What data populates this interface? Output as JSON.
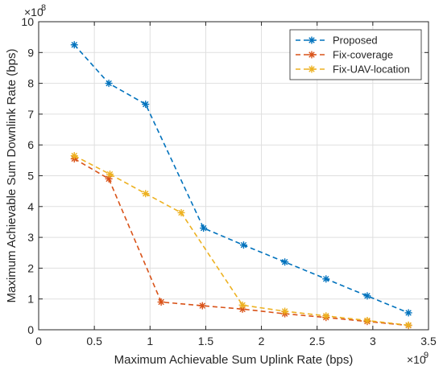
{
  "chart_data": {
    "type": "line",
    "xlabel": "Maximum Achievable Sum Uplink Rate (bps)",
    "ylabel": "Maximum  Achievable Sum Downlink Rate (bps)",
    "x_multiplier": "×10",
    "x_exponent": "9",
    "y_multiplier": "×10",
    "y_exponent": "8",
    "xlim": [
      0,
      3.5
    ],
    "ylim": [
      0,
      10
    ],
    "x_ticks": [
      "0",
      "0.5",
      "1",
      "1.5",
      "2",
      "2.5",
      "3",
      "3.5"
    ],
    "y_ticks": [
      "0",
      "1",
      "2",
      "3",
      "4",
      "5",
      "6",
      "7",
      "8",
      "9",
      "10"
    ],
    "grid": true,
    "legend_position": "top-right",
    "series": [
      {
        "name": "Proposed",
        "color": "#0072BD",
        "x": [
          0.32,
          0.63,
          0.96,
          1.48,
          1.84,
          2.21,
          2.58,
          2.95,
          3.32
        ],
        "y": [
          9.25,
          8.0,
          7.32,
          3.3,
          2.75,
          2.2,
          1.65,
          1.1,
          0.55
        ]
      },
      {
        "name": "Fix-coverage",
        "color": "#D95319",
        "x": [
          0.32,
          0.63,
          1.1,
          1.47,
          1.83,
          2.21,
          2.58,
          2.95,
          3.32
        ],
        "y": [
          5.55,
          4.9,
          0.9,
          0.78,
          0.67,
          0.52,
          0.4,
          0.27,
          0.14
        ]
      },
      {
        "name": "Fix-UAV-location",
        "color": "#EDB120",
        "x": [
          0.32,
          0.64,
          0.96,
          1.28,
          1.83,
          2.21,
          2.58,
          2.95,
          3.32
        ],
        "y": [
          5.65,
          5.05,
          4.42,
          3.8,
          0.8,
          0.6,
          0.45,
          0.3,
          0.15
        ]
      }
    ]
  }
}
